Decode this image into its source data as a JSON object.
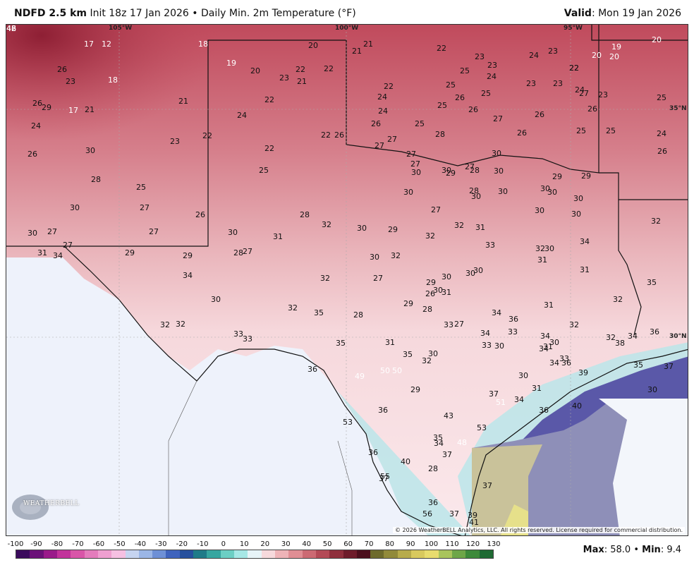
{
  "header": {
    "model": "NDFD 2.5 km",
    "init": "Init 18z 17 Jan 2026",
    "separator": "•",
    "product": "Daily Min. 2m Temperature (°F)",
    "valid_label": "Valid",
    "valid_value": ": Mon 19 Jan 2026"
  },
  "geo_labels": {
    "lon_105": "105°W",
    "lon_100": "100°W",
    "lon_95": "95°W",
    "lat_35": "35°N",
    "lat_30": "30°N"
  },
  "logo": {
    "text": "WEATHERBELL"
  },
  "copyright": "© 2026 WeatherBELL Analytics, LLC. All rights reserved. License required for commercial distribution.",
  "footer": {
    "max_label": "Max",
    "max_value": ": 58.0",
    "sep": " • ",
    "min_label": "Min",
    "min_value": ": 9.4"
  },
  "scale_ticks": [
    "-100",
    "-90",
    "-80",
    "-70",
    "-60",
    "-50",
    "-40",
    "-30",
    "-20",
    "-10",
    "0",
    "10",
    "20",
    "30",
    "40",
    "50",
    "60",
    "70",
    "80",
    "90",
    "100",
    "110",
    "120",
    "130"
  ],
  "scale_colors": [
    "#3a0a5c",
    "#6b1178",
    "#9a1a8a",
    "#c2339b",
    "#d955a8",
    "#e47cbc",
    "#ef9fd0",
    "#f6c0e2",
    "#c6d4f0",
    "#9bb6e6",
    "#6e90d6",
    "#3f63bd",
    "#27509d",
    "#1f7b88",
    "#37a6a0",
    "#6ccfc4",
    "#a6e8e6",
    "#e7f4f8",
    "#f6d9dc",
    "#eeb3b7",
    "#e08e94",
    "#cc6a73",
    "#b34a56",
    "#8f2f3c",
    "#6e1c2a",
    "#4b0f1c",
    "#6d6a2c",
    "#918a3a",
    "#b7ab4b",
    "#d8c95e",
    "#e8dc6e",
    "#a9c45c",
    "#6ea648",
    "#3d8a3a",
    "#1f6b34"
  ],
  "map_values": [
    {
      "t": "17",
      "w": true
    },
    {
      "t": "12",
      "w": true
    },
    {
      "t": "18",
      "w": true
    },
    {
      "t": "20",
      "w": false
    },
    {
      "t": "21",
      "w": false
    },
    {
      "t": "21",
      "w": false
    },
    {
      "t": "22",
      "w": false
    },
    {
      "t": "23",
      "w": false
    },
    {
      "t": "23",
      "w": false
    },
    {
      "t": "24",
      "w": false
    },
    {
      "t": "23",
      "w": false
    },
    {
      "t": "22",
      "w": false
    },
    {
      "t": "20",
      "w": true
    },
    {
      "t": "20",
      "w": true
    },
    {
      "t": "19",
      "w": true
    },
    {
      "t": "20",
      "w": true
    },
    {
      "t": "26",
      "w": false
    },
    {
      "t": "23",
      "w": false
    },
    {
      "t": "18",
      "w": true
    },
    {
      "t": "19",
      "w": true
    },
    {
      "t": "20",
      "w": false
    },
    {
      "t": "23",
      "w": false
    },
    {
      "t": "22",
      "w": false
    },
    {
      "t": "21",
      "w": false
    },
    {
      "t": "22",
      "w": false
    },
    {
      "t": "22",
      "w": false
    },
    {
      "t": "25",
      "w": false
    },
    {
      "t": "24",
      "w": false
    },
    {
      "t": "23",
      "w": false
    },
    {
      "t": "23",
      "w": false
    },
    {
      "t": "22",
      "w": false
    },
    {
      "t": "26",
      "w": false
    },
    {
      "t": "29",
      "w": false
    },
    {
      "t": "17",
      "w": true
    },
    {
      "t": "21",
      "w": false
    },
    {
      "t": "21",
      "w": false
    },
    {
      "t": "22",
      "w": false
    },
    {
      "t": "24",
      "w": false
    },
    {
      "t": "25",
      "w": false
    },
    {
      "t": "26",
      "w": false
    },
    {
      "t": "25",
      "w": false
    },
    {
      "t": "24",
      "w": false
    },
    {
      "t": "27",
      "w": false
    },
    {
      "t": "26",
      "w": false
    },
    {
      "t": "25",
      "w": false
    },
    {
      "t": "24",
      "w": false
    },
    {
      "t": "23",
      "w": false
    },
    {
      "t": "25",
      "w": false
    },
    {
      "t": "24",
      "w": false
    },
    {
      "t": "24",
      "w": false
    },
    {
      "t": "22",
      "w": false
    },
    {
      "t": "26",
      "w": false
    },
    {
      "t": "25",
      "w": false
    },
    {
      "t": "26",
      "w": false
    },
    {
      "t": "27",
      "w": false
    },
    {
      "t": "26",
      "w": false
    },
    {
      "t": "26",
      "w": false
    },
    {
      "t": "25",
      "w": false
    },
    {
      "t": "25",
      "w": false
    },
    {
      "t": "26",
      "w": false
    },
    {
      "t": "30",
      "w": false
    },
    {
      "t": "23",
      "w": false
    },
    {
      "t": "22",
      "w": false
    },
    {
      "t": "22",
      "w": false
    },
    {
      "t": "26",
      "w": false
    },
    {
      "t": "27",
      "w": false
    },
    {
      "t": "28",
      "w": false
    },
    {
      "t": "27",
      "w": false
    },
    {
      "t": "27",
      "w": false
    },
    {
      "t": "27",
      "w": false
    },
    {
      "t": "26",
      "w": false
    },
    {
      "t": "24",
      "w": false
    },
    {
      "t": "28",
      "w": false
    },
    {
      "t": "25",
      "w": false
    },
    {
      "t": "25",
      "w": false
    },
    {
      "t": "27",
      "w": false
    },
    {
      "t": "30",
      "w": false
    },
    {
      "t": "29",
      "w": false
    },
    {
      "t": "28",
      "w": false
    },
    {
      "t": "30",
      "w": false
    },
    {
      "t": "30",
      "w": false
    },
    {
      "t": "27",
      "w": false
    },
    {
      "t": "26",
      "w": false
    },
    {
      "t": "28",
      "w": false
    },
    {
      "t": "32",
      "w": false
    },
    {
      "t": "30",
      "w": false
    },
    {
      "t": "29",
      "w": false
    },
    {
      "t": "30",
      "w": false
    },
    {
      "t": "27",
      "w": false
    },
    {
      "t": "30",
      "w": false
    },
    {
      "t": "28",
      "w": false
    },
    {
      "t": "30",
      "w": false
    },
    {
      "t": "30",
      "w": false
    },
    {
      "t": "30",
      "w": false
    },
    {
      "t": "29",
      "w": false
    },
    {
      "t": "30",
      "w": false
    },
    {
      "t": "30",
      "w": false
    },
    {
      "t": "29",
      "w": false
    },
    {
      "t": "30",
      "w": false
    },
    {
      "t": "34",
      "w": false
    },
    {
      "t": "30",
      "w": false
    },
    {
      "t": "27",
      "w": false
    },
    {
      "t": "27",
      "w": false
    },
    {
      "t": "30",
      "w": false
    },
    {
      "t": "31",
      "w": false
    },
    {
      "t": "32",
      "w": false
    },
    {
      "t": "32",
      "w": false
    },
    {
      "t": "30",
      "w": false
    },
    {
      "t": "31",
      "w": false
    },
    {
      "t": "30",
      "w": false
    },
    {
      "t": "32",
      "w": false
    },
    {
      "t": "31",
      "w": false
    },
    {
      "t": "34",
      "w": false
    },
    {
      "t": "27",
      "w": false
    },
    {
      "t": "29",
      "w": false
    },
    {
      "t": "29",
      "w": false
    },
    {
      "t": "28",
      "w": false
    },
    {
      "t": "27",
      "w": false
    },
    {
      "t": "30",
      "w": false
    },
    {
      "t": "32",
      "w": false
    },
    {
      "t": "33",
      "w": false
    },
    {
      "t": "32",
      "w": false
    },
    {
      "t": "34",
      "w": false
    },
    {
      "t": "32",
      "w": false
    },
    {
      "t": "27",
      "w": false
    },
    {
      "t": "29",
      "w": false
    },
    {
      "t": "30",
      "w": false
    },
    {
      "t": "30",
      "w": false
    },
    {
      "t": "30",
      "w": false
    },
    {
      "t": "31",
      "w": false
    },
    {
      "t": "30",
      "w": false
    },
    {
      "t": "31",
      "w": false
    },
    {
      "t": "30",
      "w": false
    },
    {
      "t": "32",
      "w": false
    },
    {
      "t": "35",
      "w": false
    },
    {
      "t": "28",
      "w": false
    },
    {
      "t": "29",
      "w": false
    },
    {
      "t": "28",
      "w": false
    },
    {
      "t": "26",
      "w": false
    },
    {
      "t": "31",
      "w": false
    },
    {
      "t": "30",
      "w": false
    },
    {
      "t": "31",
      "w": false
    },
    {
      "t": "32",
      "w": false
    },
    {
      "t": "35",
      "w": false
    },
    {
      "t": "32",
      "w": false
    },
    {
      "t": "32",
      "w": false
    },
    {
      "t": "33",
      "w": false
    },
    {
      "t": "27",
      "w": false
    },
    {
      "t": "36",
      "w": false
    },
    {
      "t": "34",
      "w": false
    },
    {
      "t": "33",
      "w": false
    },
    {
      "t": "34",
      "w": false
    },
    {
      "t": "33",
      "w": false
    },
    {
      "t": "32",
      "w": false
    },
    {
      "t": "33",
      "w": false
    },
    {
      "t": "33",
      "w": false
    },
    {
      "t": "35",
      "w": false
    },
    {
      "t": "31",
      "w": false
    },
    {
      "t": "30",
      "w": false
    },
    {
      "t": "34",
      "w": false
    },
    {
      "t": "30",
      "w": false
    },
    {
      "t": "32",
      "w": false
    },
    {
      "t": "34",
      "w": false
    },
    {
      "t": "38",
      "w": false
    },
    {
      "t": "34",
      "w": false
    },
    {
      "t": "36",
      "w": false
    },
    {
      "t": "36",
      "w": false
    },
    {
      "t": "35",
      "w": false
    },
    {
      "t": "30",
      "w": false
    },
    {
      "t": "32",
      "w": false
    },
    {
      "t": "31",
      "w": false
    },
    {
      "t": "33",
      "w": false
    },
    {
      "t": "34",
      "w": false
    },
    {
      "t": "36",
      "w": false
    },
    {
      "t": "39",
      "w": false
    },
    {
      "t": "35",
      "w": false
    },
    {
      "t": "37",
      "w": false
    },
    {
      "t": "49",
      "w": true
    },
    {
      "t": "50",
      "w": true
    },
    {
      "t": "50",
      "w": true
    },
    {
      "t": "29",
      "w": false
    },
    {
      "t": "30",
      "w": false
    },
    {
      "t": "31",
      "w": false
    },
    {
      "t": "30",
      "w": false
    },
    {
      "t": "36",
      "w": false
    },
    {
      "t": "37",
      "w": false
    },
    {
      "t": "51",
      "w": true
    },
    {
      "t": "34",
      "w": false
    },
    {
      "t": "36",
      "w": false
    },
    {
      "t": "40",
      "w": false
    },
    {
      "t": "43",
      "w": false
    },
    {
      "t": "53",
      "w": false
    },
    {
      "t": "53",
      "w": false
    },
    {
      "t": "35",
      "w": false
    },
    {
      "t": "34",
      "w": false
    },
    {
      "t": "48",
      "w": true
    },
    {
      "t": "37",
      "w": false
    },
    {
      "t": "36",
      "w": false
    },
    {
      "t": "40",
      "w": false
    },
    {
      "t": "55",
      "w": false
    },
    {
      "t": "28",
      "w": false
    },
    {
      "t": "37",
      "w": false
    },
    {
      "t": "37",
      "w": false
    },
    {
      "t": "36",
      "w": false
    },
    {
      "t": "37",
      "w": false
    },
    {
      "t": "56",
      "w": false
    },
    {
      "t": "39",
      "w": false
    },
    {
      "t": "41",
      "w": false
    },
    {
      "t": "42",
      "w": true
    },
    {
      "t": "46",
      "w": true
    },
    {
      "t": "48",
      "w": true
    }
  ]
}
